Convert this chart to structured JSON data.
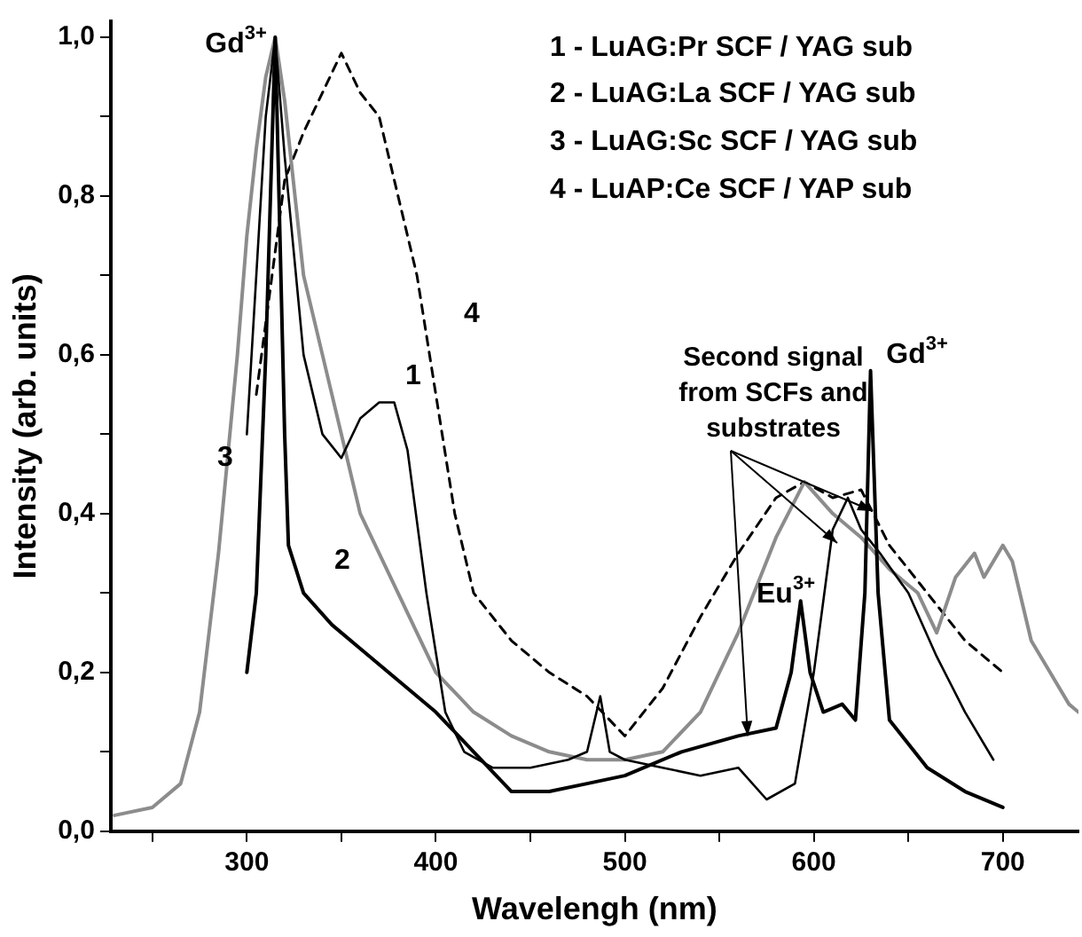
{
  "chart_data": {
    "type": "line",
    "xlabel": "Wavelengh (nm)",
    "ylabel": "Intensity (arb. units)",
    "xlim": [
      228,
      740
    ],
    "ylim": [
      0,
      1.02
    ],
    "xticks": [
      {
        "value": 250,
        "label": null
      },
      300,
      {
        "value": 350,
        "label": null
      },
      400,
      {
        "value": 450,
        "label": null
      },
      500,
      {
        "value": 550,
        "label": null
      },
      600,
      {
        "value": 650,
        "label": null
      },
      700
    ],
    "yticks": [
      {
        "value": 0,
        "label": "0,0"
      },
      {
        "value": 0.1,
        "label": null
      },
      {
        "value": 0.2,
        "label": "0,2"
      },
      {
        "value": 0.3,
        "label": null
      },
      {
        "value": 0.4,
        "label": "0,4"
      },
      {
        "value": 0.5,
        "label": null
      },
      {
        "value": 0.6,
        "label": "0,6"
      },
      {
        "value": 0.7,
        "label": null
      },
      {
        "value": 0.8,
        "label": "0,8"
      },
      {
        "value": 0.9,
        "label": null
      },
      {
        "value": 1.0,
        "label": "1,0"
      }
    ],
    "grid": false,
    "legend": false,
    "marker": "none",
    "series": [
      {
        "color": "#000000",
        "line_style": "solid",
        "x": [
          300,
          305,
          310,
          315,
          320,
          330,
          340,
          350,
          360,
          370,
          378,
          385,
          395,
          405,
          415,
          430,
          450,
          470,
          480,
          487,
          492,
          500,
          520,
          540,
          560,
          575,
          590,
          600,
          610,
          618,
          625,
          635,
          650,
          665,
          680,
          695
        ],
        "values": [
          0.5,
          0.7,
          0.9,
          1.0,
          0.85,
          0.6,
          0.5,
          0.47,
          0.52,
          0.54,
          0.54,
          0.48,
          0.3,
          0.15,
          0.1,
          0.08,
          0.08,
          0.09,
          0.1,
          0.17,
          0.1,
          0.09,
          0.08,
          0.07,
          0.08,
          0.04,
          0.06,
          0.2,
          0.38,
          0.42,
          0.38,
          0.35,
          0.3,
          0.22,
          0.15,
          0.09
        ]
      },
      {
        "color": "#000000",
        "line_style": "solid",
        "x": [
          300,
          305,
          310,
          315,
          320,
          322,
          330,
          345,
          360,
          380,
          400,
          420,
          440,
          460,
          480,
          500,
          530,
          560,
          580,
          588,
          593,
          598,
          605,
          615,
          622,
          627,
          630,
          634,
          640,
          660,
          680,
          700
        ],
        "values": [
          0.2,
          0.3,
          0.6,
          1.0,
          0.5,
          0.36,
          0.3,
          0.26,
          0.23,
          0.19,
          0.15,
          0.1,
          0.05,
          0.05,
          0.06,
          0.07,
          0.1,
          0.12,
          0.13,
          0.2,
          0.29,
          0.2,
          0.15,
          0.16,
          0.14,
          0.3,
          0.58,
          0.3,
          0.14,
          0.08,
          0.05,
          0.03
        ]
      },
      {
        "color": "#8c8c8c",
        "line_style": "solid",
        "x": [
          230,
          250,
          265,
          275,
          285,
          295,
          300,
          305,
          310,
          315,
          320,
          330,
          345,
          360,
          380,
          400,
          420,
          440,
          460,
          480,
          500,
          520,
          540,
          560,
          580,
          595,
          610,
          625,
          640,
          655,
          665,
          675,
          685,
          690,
          700,
          705,
          715,
          725,
          735,
          740
        ],
        "values": [
          0.02,
          0.03,
          0.06,
          0.15,
          0.35,
          0.6,
          0.75,
          0.86,
          0.95,
          1.0,
          0.92,
          0.7,
          0.55,
          0.4,
          0.3,
          0.2,
          0.15,
          0.12,
          0.1,
          0.09,
          0.09,
          0.1,
          0.15,
          0.25,
          0.37,
          0.44,
          0.4,
          0.37,
          0.33,
          0.3,
          0.25,
          0.32,
          0.35,
          0.32,
          0.36,
          0.34,
          0.24,
          0.2,
          0.16,
          0.15
        ]
      },
      {
        "color": "#000000",
        "line_style": "dashed",
        "x": [
          305,
          320,
          330,
          350,
          360,
          370,
          380,
          390,
          400,
          410,
          420,
          440,
          460,
          480,
          500,
          520,
          540,
          560,
          580,
          595,
          610,
          625,
          640,
          660,
          680,
          700
        ],
        "values": [
          0.55,
          0.82,
          0.88,
          0.98,
          0.93,
          0.9,
          0.8,
          0.7,
          0.55,
          0.4,
          0.3,
          0.24,
          0.2,
          0.17,
          0.12,
          0.18,
          0.27,
          0.35,
          0.42,
          0.44,
          0.42,
          0.43,
          0.36,
          0.3,
          0.24,
          0.2
        ]
      }
    ],
    "annotations": [
      "1 - LuAG:Pr SCF / YAG sub",
      "2 - LuAG:La SCF / YAG sub",
      "3 - LuAG:Sc SCF / YAG sub",
      "4 - LuAP:Ce SCF / YAP sub",
      "Gd$^{3+}$",
      "Gd$^{3+}$",
      "Eu$^{3+}$",
      "1",
      "2",
      "3",
      "4",
      {
        "text": "Second signal from SCFs and substrates",
        "x": 565,
        "y": 0.12
      }
    ]
  }
}
